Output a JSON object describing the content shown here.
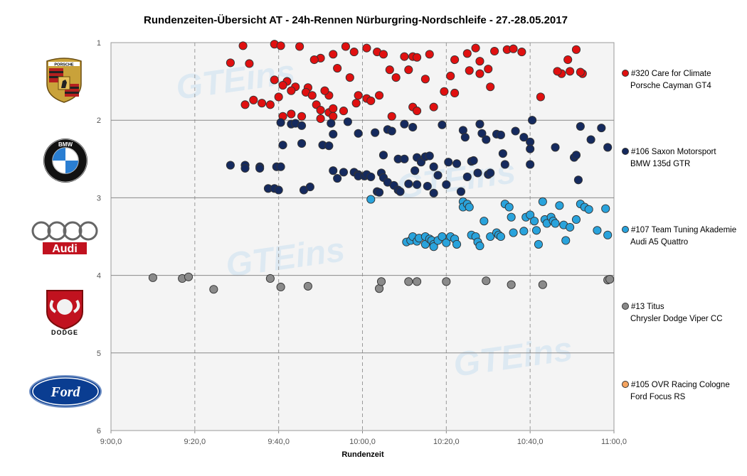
{
  "chart_data": {
    "type": "scatter",
    "title": "Rundenzeiten-Übersicht  AT - 24h-Rennen  Nürburgring-Nordschleife  - 27.-28.05.2017",
    "xlabel": "Rundenzeit",
    "ylabel": "",
    "x_ticks": [
      "9:00,0",
      "9:20,0",
      "9:40,0",
      "10:00,0",
      "10:20,0",
      "10:40,0",
      "11:00,0"
    ],
    "y_ticks": [
      "1",
      "2",
      "3",
      "4",
      "5",
      "6"
    ],
    "xlim": [
      "9:00,0",
      "11:00,0"
    ],
    "ylim": [
      1,
      6
    ],
    "y_reversed": true,
    "grid": true,
    "legend_position": "right",
    "watermark": "GTEins",
    "series": [
      {
        "name": "#320 Care for Climate\nPorsche Cayman GT4",
        "color": "#e01010",
        "points": [
          [
            "9:28,5",
            1.26
          ],
          [
            "9:31,5",
            1.04
          ],
          [
            "9:33,0",
            1.27
          ],
          [
            "9:39,0",
            1.02
          ],
          [
            "9:40,5",
            1.04
          ],
          [
            "9:45,0",
            1.05
          ],
          [
            "9:50,0",
            1.2
          ],
          [
            "9:53,0",
            1.15
          ],
          [
            "9:56,0",
            1.05
          ],
          [
            "9:58,0",
            1.12
          ],
          [
            "10:01,0",
            1.07
          ],
          [
            "10:03,5",
            1.12
          ],
          [
            "10:05,0",
            1.15
          ],
          [
            "10:10,0",
            1.18
          ],
          [
            "10:12,0",
            1.18
          ],
          [
            "10:16,0",
            1.15
          ],
          [
            "10:22,0",
            1.22
          ],
          [
            "10:25,0",
            1.14
          ],
          [
            "10:27,0",
            1.07
          ],
          [
            "10:28,0",
            1.24
          ],
          [
            "10:31,5",
            1.11
          ],
          [
            "10:34,5",
            1.09
          ],
          [
            "10:36,0",
            1.08
          ],
          [
            "10:38,0",
            1.12
          ],
          [
            "10:47,5",
            1.4
          ],
          [
            "10:49,0",
            1.22
          ],
          [
            "10:51,0",
            1.09
          ],
          [
            "10:52,5",
            1.4
          ],
          [
            "9:39,0",
            1.48
          ],
          [
            "9:42,0",
            1.5
          ],
          [
            "9:44,0",
            1.57
          ],
          [
            "9:47,0",
            1.58
          ],
          [
            "9:48,5",
            1.22
          ],
          [
            "9:52,0",
            1.68
          ],
          [
            "9:54,0",
            1.33
          ],
          [
            "9:57,0",
            1.45
          ],
          [
            "9:59,0",
            1.68
          ],
          [
            "10:01,0",
            1.72
          ],
          [
            "10:04,0",
            1.68
          ],
          [
            "10:06,5",
            1.35
          ],
          [
            "10:08,0",
            1.45
          ],
          [
            "10:11,0",
            1.35
          ],
          [
            "10:13,0",
            1.19
          ],
          [
            "10:15,0",
            1.47
          ],
          [
            "10:17,0",
            1.83
          ],
          [
            "10:19,5",
            1.63
          ],
          [
            "10:21,0",
            1.43
          ],
          [
            "10:22,0",
            1.65
          ],
          [
            "10:25,5",
            1.36
          ],
          [
            "10:28,0",
            1.4
          ],
          [
            "10:30,0",
            1.34
          ],
          [
            "10:30,5",
            1.57
          ],
          [
            "10:42,5",
            1.7
          ],
          [
            "10:46,5",
            1.37
          ],
          [
            "10:49,5",
            1.37
          ],
          [
            "10:52,0",
            1.38
          ],
          [
            "9:32,0",
            1.8
          ],
          [
            "9:34,0",
            1.74
          ],
          [
            "9:36,0",
            1.78
          ],
          [
            "9:38,0",
            1.8
          ],
          [
            "9:40,0",
            1.7
          ],
          [
            "9:41,0",
            1.55
          ],
          [
            "9:43,0",
            1.62
          ],
          [
            "9:46,5",
            1.64
          ],
          [
            "9:48,0",
            1.68
          ],
          [
            "9:49,0",
            1.8
          ],
          [
            "9:50,0",
            1.87
          ],
          [
            "9:51,0",
            1.62
          ],
          [
            "9:52,0",
            1.9
          ],
          [
            "9:53,0",
            1.85
          ],
          [
            "9:55,5",
            1.88
          ],
          [
            "9:58,5",
            1.78
          ],
          [
            "10:02,0",
            1.75
          ],
          [
            "10:07,0",
            1.95
          ],
          [
            "10:12,0",
            1.83
          ],
          [
            "10:13,0",
            1.88
          ],
          [
            "9:41,0",
            1.95
          ],
          [
            "9:43,0",
            1.92
          ],
          [
            "9:45,5",
            1.95
          ],
          [
            "9:50,0",
            1.98
          ],
          [
            "9:53,0",
            1.95
          ]
        ]
      },
      {
        "name": "#106 Saxon Motorsport\nBMW 135d GTR",
        "color": "#152a5e",
        "points": [
          [
            "9:28,5",
            2.58
          ],
          [
            "9:32,0",
            2.58
          ],
          [
            "9:32,0",
            2.62
          ],
          [
            "9:35,5",
            2.6
          ],
          [
            "9:35,5",
            2.62
          ],
          [
            "9:37,5",
            2.88
          ],
          [
            "9:39,0",
            2.88
          ],
          [
            "9:40,0",
            2.9
          ],
          [
            "9:39,5",
            2.6
          ],
          [
            "9:40,5",
            2.6
          ],
          [
            "9:41,0",
            2.32
          ],
          [
            "9:40,5",
            2.03
          ],
          [
            "9:43,0",
            2.05
          ],
          [
            "9:44,0",
            2.04
          ],
          [
            "9:45,5",
            2.3
          ],
          [
            "9:45,5",
            2.07
          ],
          [
            "9:46,0",
            2.9
          ],
          [
            "9:47,5",
            2.86
          ],
          [
            "9:50,5",
            2.32
          ],
          [
            "9:52,0",
            2.33
          ],
          [
            "9:52,5",
            2.04
          ],
          [
            "9:53,0",
            2.18
          ],
          [
            "9:53,0",
            2.65
          ],
          [
            "9:54,0",
            2.75
          ],
          [
            "9:55,5",
            2.67
          ],
          [
            "9:56,5",
            2.02
          ],
          [
            "9:58,0",
            2.67
          ],
          [
            "9:59,0",
            2.7
          ],
          [
            "9:59,0",
            2.72
          ],
          [
            "9:59,0",
            2.17
          ],
          [
            "10:00,5",
            2.72
          ],
          [
            "10:01,0",
            2.7
          ],
          [
            "10:02,0",
            2.73
          ],
          [
            "10:03,0",
            2.16
          ],
          [
            "10:03,5",
            2.92
          ],
          [
            "10:04,0",
            2.93
          ],
          [
            "10:04,5",
            2.68
          ],
          [
            "10:05,0",
            2.74
          ],
          [
            "10:05,0",
            2.45
          ],
          [
            "10:06,0",
            2.8
          ],
          [
            "10:06,0",
            2.12
          ],
          [
            "10:07,0",
            2.14
          ],
          [
            "10:07,5",
            2.84
          ],
          [
            "10:08,5",
            2.9
          ],
          [
            "10:08,5",
            2.5
          ],
          [
            "10:09,0",
            2.92
          ],
          [
            "10:10,0",
            2.05
          ],
          [
            "10:10,0",
            2.5
          ],
          [
            "10:11,0",
            2.82
          ],
          [
            "10:12,0",
            2.09
          ],
          [
            "10:12,5",
            2.65
          ],
          [
            "10:13,0",
            2.48
          ],
          [
            "10:13,0",
            2.83
          ],
          [
            "10:14,0",
            2.54
          ],
          [
            "10:15,0",
            2.47
          ],
          [
            "10:15,5",
            2.85
          ],
          [
            "10:16,0",
            2.46
          ],
          [
            "10:17,0",
            2.6
          ],
          [
            "10:17,0",
            2.94
          ],
          [
            "10:18,0",
            2.71
          ],
          [
            "10:19,0",
            2.06
          ],
          [
            "10:20,0",
            2.83
          ],
          [
            "10:20,5",
            2.54
          ],
          [
            "10:22,5",
            2.56
          ],
          [
            "10:23,5",
            2.92
          ],
          [
            "10:24,0",
            2.13
          ],
          [
            "10:24,5",
            2.22
          ],
          [
            "10:25,0",
            2.73
          ],
          [
            "10:26,0",
            2.53
          ],
          [
            "10:26,5",
            2.52
          ],
          [
            "10:27,5",
            2.68
          ],
          [
            "10:28,0",
            2.05
          ],
          [
            "10:28,5",
            2.17
          ],
          [
            "10:29,5",
            2.25
          ],
          [
            "10:30,0",
            2.7
          ],
          [
            "10:30,5",
            2.68
          ],
          [
            "10:32,0",
            2.18
          ],
          [
            "10:33,0",
            2.19
          ],
          [
            "10:33,5",
            2.43
          ],
          [
            "10:34,0",
            2.57
          ],
          [
            "10:36,5",
            2.14
          ],
          [
            "10:38,5",
            2.22
          ],
          [
            "10:40,0",
            2.28
          ],
          [
            "10:40,0",
            2.37
          ],
          [
            "10:40,0",
            2.57
          ],
          [
            "10:40,5",
            2.0
          ],
          [
            "10:46,0",
            2.35
          ],
          [
            "10:50,5",
            2.48
          ],
          [
            "10:51,0",
            2.45
          ],
          [
            "10:51,5",
            2.77
          ],
          [
            "10:52,0",
            2.08
          ],
          [
            "10:54,5",
            2.25
          ],
          [
            "10:57,0",
            2.1
          ],
          [
            "10:58,5",
            2.35
          ]
        ]
      },
      {
        "name": "#107 Team Tuning Akademie\nAudi A5 Quattro",
        "color": "#29a3dc",
        "points": [
          [
            "10:02,0",
            3.02
          ],
          [
            "10:10,5",
            3.57
          ],
          [
            "10:11,5",
            3.55
          ],
          [
            "10:12,0",
            3.5
          ],
          [
            "10:13,0",
            3.56
          ],
          [
            "10:13,5",
            3.52
          ],
          [
            "10:15,0",
            3.5
          ],
          [
            "10:15,0",
            3.6
          ],
          [
            "10:16,0",
            3.53
          ],
          [
            "10:16,5",
            3.55
          ],
          [
            "10:17,0",
            3.6
          ],
          [
            "10:17,0",
            3.63
          ],
          [
            "10:18,0",
            3.55
          ],
          [
            "10:19,0",
            3.5
          ],
          [
            "10:20,0",
            3.58
          ],
          [
            "10:21,0",
            3.5
          ],
          [
            "10:22,0",
            3.53
          ],
          [
            "10:22,5",
            3.6
          ],
          [
            "10:24,0",
            3.05
          ],
          [
            "10:24,0",
            3.12
          ],
          [
            "10:25,0",
            3.08
          ],
          [
            "10:25,5",
            3.12
          ],
          [
            "10:26,0",
            3.48
          ],
          [
            "10:27,0",
            3.5
          ],
          [
            "10:27,5",
            3.57
          ],
          [
            "10:28,0",
            3.62
          ],
          [
            "10:29,0",
            3.3
          ],
          [
            "10:30,5",
            3.5
          ],
          [
            "10:32,0",
            3.45
          ],
          [
            "10:32,5",
            3.48
          ],
          [
            "10:33,0",
            3.5
          ],
          [
            "10:34,0",
            3.08
          ],
          [
            "10:35,0",
            3.12
          ],
          [
            "10:35,5",
            3.25
          ],
          [
            "10:36,0",
            3.45
          ],
          [
            "10:38,5",
            3.43
          ],
          [
            "10:39,0",
            3.25
          ],
          [
            "10:40,0",
            3.22
          ],
          [
            "10:41,0",
            3.3
          ],
          [
            "10:41,5",
            3.42
          ],
          [
            "10:42,0",
            3.6
          ],
          [
            "10:43,0",
            3.05
          ],
          [
            "10:43,5",
            3.28
          ],
          [
            "10:44,0",
            3.33
          ],
          [
            "10:45,0",
            3.25
          ],
          [
            "10:45,5",
            3.3
          ],
          [
            "10:46,0",
            3.33
          ],
          [
            "10:47,0",
            3.1
          ],
          [
            "10:48,0",
            3.35
          ],
          [
            "10:48,5",
            3.55
          ],
          [
            "10:49,5",
            3.38
          ],
          [
            "10:51,0",
            3.28
          ],
          [
            "10:52,0",
            3.08
          ],
          [
            "10:53,0",
            3.12
          ],
          [
            "10:54,0",
            3.15
          ],
          [
            "10:56,0",
            3.42
          ],
          [
            "10:58,0",
            3.14
          ],
          [
            "10:58,5",
            3.48
          ]
        ]
      },
      {
        "name": "#13 Titus\nChrysler Dodge Viper CC",
        "color": "#8a8a8a",
        "points": [
          [
            "9:10,0",
            4.03
          ],
          [
            "9:17,0",
            4.04
          ],
          [
            "9:18,5",
            4.02
          ],
          [
            "9:24,5",
            4.18
          ],
          [
            "9:38,0",
            4.04
          ],
          [
            "9:40,5",
            4.15
          ],
          [
            "9:47,0",
            4.14
          ],
          [
            "10:04,0",
            4.17
          ],
          [
            "10:04,5",
            4.08
          ],
          [
            "10:11,0",
            4.08
          ],
          [
            "10:13,0",
            4.08
          ],
          [
            "10:20,0",
            4.08
          ],
          [
            "10:29,5",
            4.07
          ],
          [
            "10:35,5",
            4.12
          ],
          [
            "10:43,0",
            4.12
          ],
          [
            "10:58,5",
            4.06
          ],
          [
            "10:59,0",
            4.05
          ]
        ]
      },
      {
        "name": "#105 OVR Racing Cologne\nFord Focus RS",
        "color": "#f4a460",
        "points": []
      }
    ]
  },
  "logos": [
    {
      "name": "porsche-logo",
      "text": "PORSCHE"
    },
    {
      "name": "bmw-logo",
      "text": "BMW"
    },
    {
      "name": "audi-logo",
      "text": "Audi"
    },
    {
      "name": "dodge-logo",
      "text": "DODGE"
    },
    {
      "name": "ford-logo",
      "text": "Ford"
    }
  ],
  "legend": [
    {
      "line1": "#320 Care for Climate",
      "line2": "Porsche Cayman GT4",
      "color": "#e01010"
    },
    {
      "line1": "#106 Saxon Motorsport",
      "line2": "BMW 135d GTR",
      "color": "#152a5e"
    },
    {
      "line1": "#107 Team Tuning Akademie",
      "line2": "Audi A5 Quattro",
      "color": "#29a3dc"
    },
    {
      "line1": "#13 Titus",
      "line2": "Chrysler Dodge Viper CC",
      "color": "#8a8a8a"
    },
    {
      "line1": "#105 OVR Racing Cologne",
      "line2": "Ford Focus RS",
      "color": "#f4a460"
    }
  ]
}
